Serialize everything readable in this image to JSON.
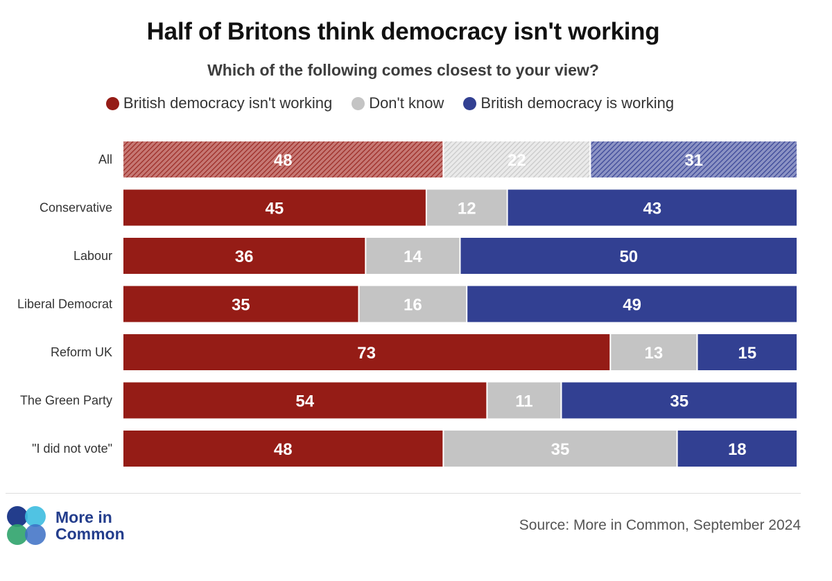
{
  "title": "Half of Britons think democracy isn't working",
  "subtitle": "Which of the following comes closest to your view?",
  "legend": [
    {
      "label": "British democracy isn't working",
      "color": "#951c16"
    },
    {
      "label": "Don't know",
      "color": "#c4c4c4"
    },
    {
      "label": "British democracy is working",
      "color": "#324092"
    }
  ],
  "chart_data": {
    "type": "bar",
    "orientation": "horizontal",
    "stacked": "100%",
    "categories": [
      "All",
      "Conservative",
      "Labour",
      "Liberal Democrat",
      "Reform UK",
      "The Green Party",
      "\"I did not vote\""
    ],
    "series": [
      {
        "name": "British democracy isn't working",
        "color": "#951c16",
        "values": [
          48,
          45,
          36,
          35,
          73,
          54,
          48
        ]
      },
      {
        "name": "Don't know",
        "color": "#c4c4c4",
        "values": [
          22,
          12,
          14,
          16,
          13,
          11,
          35
        ]
      },
      {
        "name": "British democracy is working",
        "color": "#324092",
        "values": [
          31,
          43,
          50,
          49,
          15,
          35,
          18
        ]
      }
    ],
    "highlighted_category": "All",
    "legend_position": "top",
    "grid": false
  },
  "logo": {
    "line1": "More in",
    "line2": "Common"
  },
  "source": "Source: More in Common, September 2024"
}
